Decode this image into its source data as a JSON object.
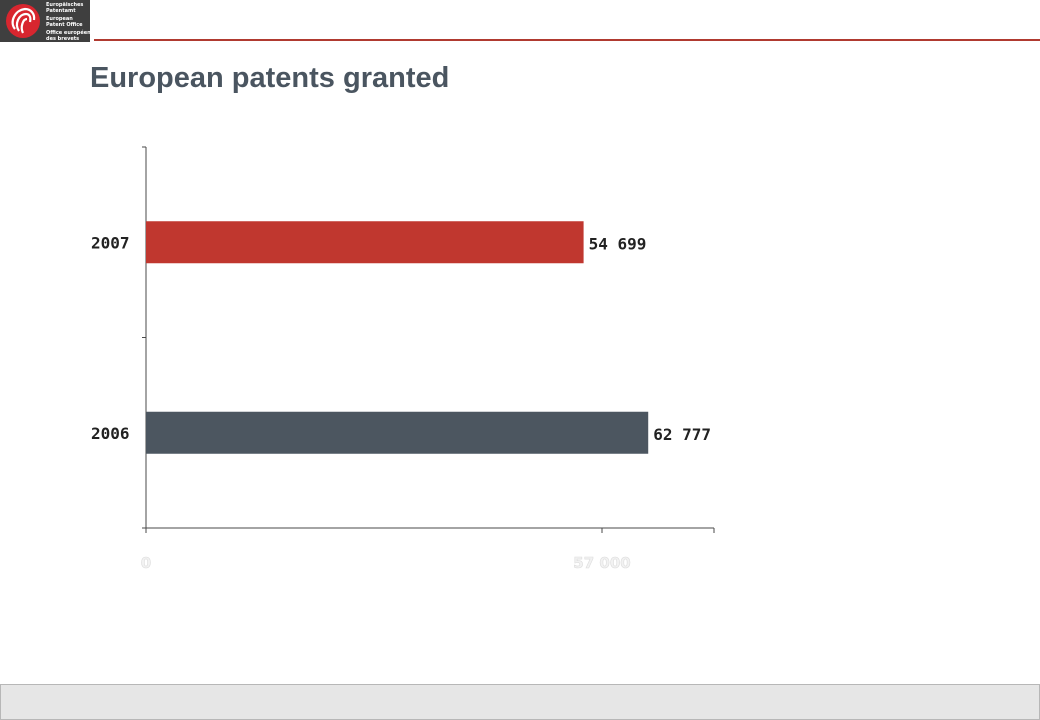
{
  "header": {
    "logo_lines": [
      "Europäisches",
      "Patentamt",
      "European",
      "Patent Office",
      "Office européen",
      "des brevets"
    ],
    "title": "European patents granted"
  },
  "colors": {
    "accent_red": "#c0372f",
    "slate": "#4c5660",
    "axis": "#4a4a4a",
    "tick_label_faded": "#f2f2f2"
  },
  "chart_data": {
    "type": "bar",
    "orientation": "horizontal",
    "title": "European patents granted",
    "categories": [
      "2007",
      "2006"
    ],
    "values": [
      54699,
      62777
    ],
    "value_labels": [
      "54 699",
      "62 777"
    ],
    "bar_colors": [
      "#c0372f",
      "#4c5660"
    ],
    "x_ticks": [
      "0",
      "57 000"
    ],
    "x_tick_values": [
      0,
      57000
    ],
    "xlim": [
      0,
      71000
    ],
    "xlabel": "",
    "ylabel": "",
    "grid": false,
    "legend": "none"
  }
}
